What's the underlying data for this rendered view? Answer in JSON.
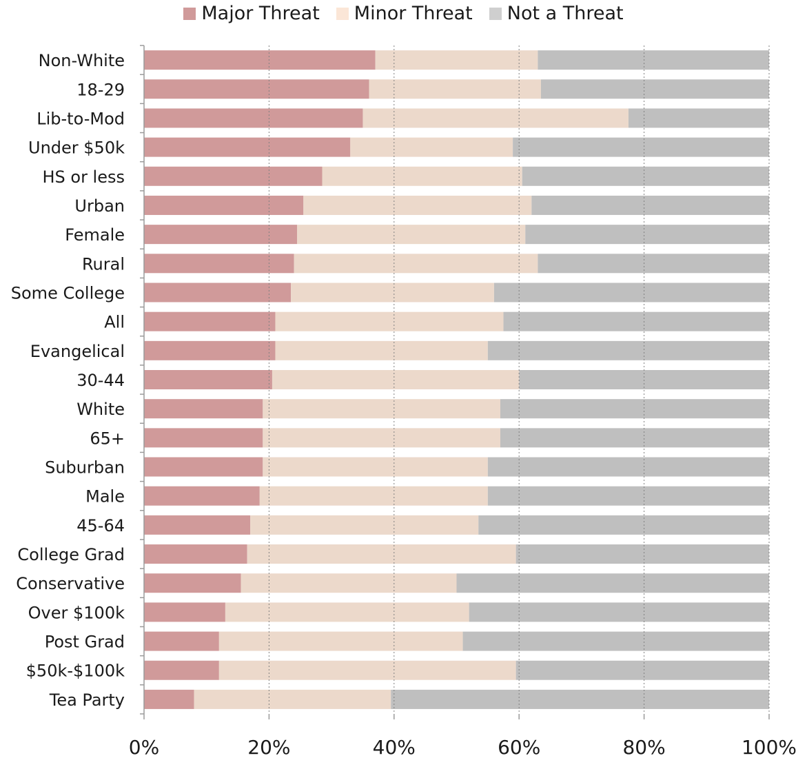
{
  "chart_data": {
    "type": "bar",
    "orientation": "horizontal",
    "stacked": true,
    "percent_stacked": true,
    "legend_position": "top",
    "grid": true,
    "xlim": [
      0,
      100
    ],
    "x_ticks": [
      "0%",
      "20%",
      "40%",
      "60%",
      "80%",
      "100%"
    ],
    "categories": [
      "Non-White",
      "18-29",
      "Lib-to-Mod",
      "Under $50k",
      "HS or less",
      "Urban",
      "Female",
      "Rural",
      "Some College",
      "All",
      "Evangelical",
      "30-44",
      "White",
      "65+",
      "Suburban",
      "Male",
      "45-64",
      "College Grad",
      "Conservative",
      "Over $100k",
      "Post Grad",
      "$50k-$100k",
      "Tea Party"
    ],
    "series": [
      {
        "name": "Major Threat",
        "color": "#d09a9a",
        "values": [
          37,
          36,
          35,
          33,
          28.5,
          25.5,
          24.5,
          24,
          23.5,
          21,
          21,
          20.5,
          19,
          19,
          19,
          18.5,
          17,
          16.5,
          15.5,
          13,
          12,
          12,
          8
        ]
      },
      {
        "name": "Minor Threat",
        "color": "#ecd9cb",
        "values": [
          26,
          27.5,
          42.5,
          26,
          32,
          36.5,
          36.5,
          39,
          32.5,
          36.5,
          34,
          39.5,
          38,
          38,
          36,
          36.5,
          36.5,
          43,
          34.5,
          39,
          39,
          47.5,
          31.5
        ]
      },
      {
        "name": "Not a Threat",
        "color": "#bfbfbf",
        "values": [
          37,
          36.5,
          22.5,
          41,
          39.5,
          38,
          39,
          37,
          44,
          42.5,
          45,
          40,
          43,
          43,
          45,
          45,
          46.5,
          40.5,
          50,
          48,
          49,
          40.5,
          60.5
        ]
      }
    ]
  }
}
